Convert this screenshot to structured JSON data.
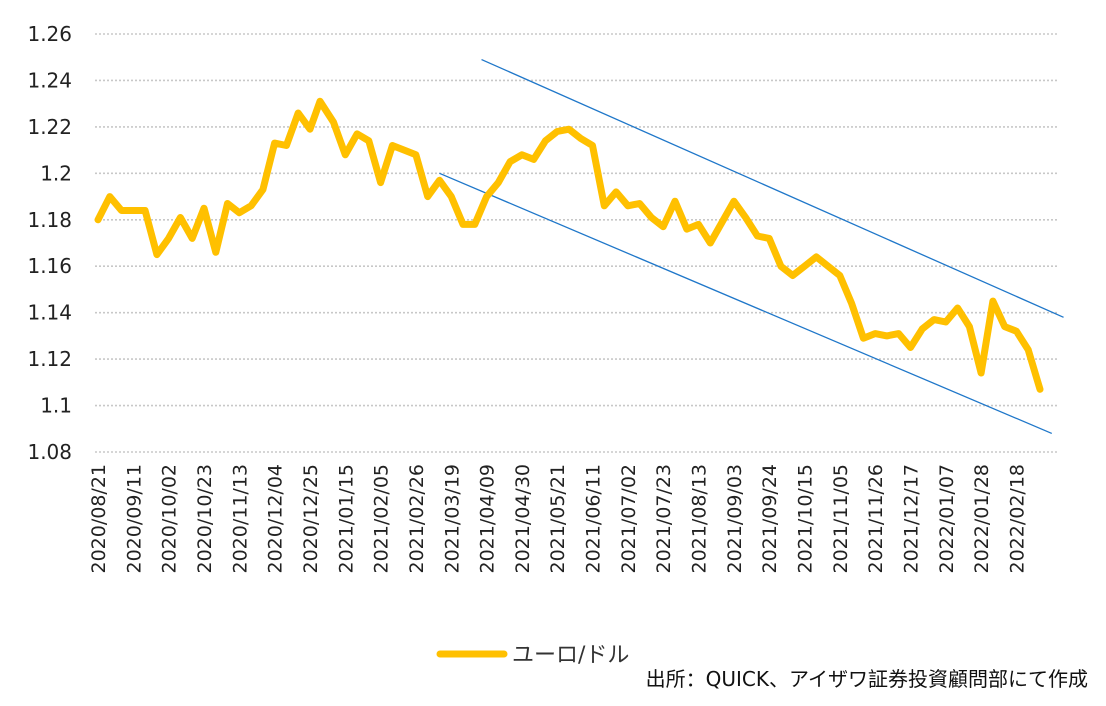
{
  "chart_data": {
    "type": "line",
    "title": "",
    "xlabel": "",
    "ylabel": "",
    "ylim": [
      1.08,
      1.26
    ],
    "y_ticks": [
      "1.08",
      "1.1",
      "1.12",
      "1.14",
      "1.16",
      "1.18",
      "1.2",
      "1.22",
      "1.24",
      "1.26"
    ],
    "x_tick_labels": [
      "2020/08/21",
      "2020/09/11",
      "2020/10/02",
      "2020/10/23",
      "2020/11/13",
      "2020/12/04",
      "2020/12/25",
      "2021/01/15",
      "2021/02/05",
      "2021/02/26",
      "2021/03/19",
      "2021/04/09",
      "2021/04/30",
      "2021/05/21",
      "2021/06/11",
      "2021/07/02",
      "2021/07/23",
      "2021/08/13",
      "2021/09/03",
      "2021/09/24",
      "2021/10/15",
      "2021/11/05",
      "2021/11/26",
      "2021/12/17",
      "2022/01/07",
      "2022/01/28",
      "2022/02/18"
    ],
    "grid": true,
    "legend_position": "bottom",
    "series": [
      {
        "name": "ユーロ/ドル",
        "color": "#FFC000",
        "points": [
          [
            "2020/08/21",
            1.18
          ],
          [
            "2020/08/28",
            1.19
          ],
          [
            "2020/09/04",
            1.184
          ],
          [
            "2020/09/11",
            1.184
          ],
          [
            "2020/09/18",
            1.184
          ],
          [
            "2020/09/25",
            1.165
          ],
          [
            "2020/10/02",
            1.172
          ],
          [
            "2020/10/09",
            1.181
          ],
          [
            "2020/10/16",
            1.172
          ],
          [
            "2020/10/23",
            1.185
          ],
          [
            "2020/10/30",
            1.166
          ],
          [
            "2020/11/06",
            1.187
          ],
          [
            "2020/11/13",
            1.183
          ],
          [
            "2020/11/20",
            1.186
          ],
          [
            "2020/11/27",
            1.193
          ],
          [
            "2020/12/04",
            1.213
          ],
          [
            "2020/12/11",
            1.212
          ],
          [
            "2020/12/18",
            1.226
          ],
          [
            "2020/12/25",
            1.219
          ],
          [
            "2020/12/31",
            1.231
          ],
          [
            "2021/01/08",
            1.222
          ],
          [
            "2021/01/15",
            1.208
          ],
          [
            "2021/01/22",
            1.217
          ],
          [
            "2021/01/29",
            1.214
          ],
          [
            "2021/02/05",
            1.196
          ],
          [
            "2021/02/12",
            1.212
          ],
          [
            "2021/02/19",
            1.21
          ],
          [
            "2021/02/26",
            1.208
          ],
          [
            "2021/03/05",
            1.19
          ],
          [
            "2021/03/12",
            1.197
          ],
          [
            "2021/03/19",
            1.19
          ],
          [
            "2021/03/26",
            1.178
          ],
          [
            "2021/04/02",
            1.178
          ],
          [
            "2021/04/09",
            1.19
          ],
          [
            "2021/04/16",
            1.196
          ],
          [
            "2021/04/23",
            1.205
          ],
          [
            "2021/04/30",
            1.208
          ],
          [
            "2021/05/07",
            1.206
          ],
          [
            "2021/05/14",
            1.214
          ],
          [
            "2021/05/21",
            1.218
          ],
          [
            "2021/05/28",
            1.219
          ],
          [
            "2021/06/04",
            1.215
          ],
          [
            "2021/06/11",
            1.212
          ],
          [
            "2021/06/18",
            1.186
          ],
          [
            "2021/06/25",
            1.192
          ],
          [
            "2021/07/02",
            1.186
          ],
          [
            "2021/07/09",
            1.187
          ],
          [
            "2021/07/16",
            1.181
          ],
          [
            "2021/07/23",
            1.177
          ],
          [
            "2021/07/30",
            1.188
          ],
          [
            "2021/08/06",
            1.176
          ],
          [
            "2021/08/13",
            1.178
          ],
          [
            "2021/08/20",
            1.17
          ],
          [
            "2021/08/27",
            1.179
          ],
          [
            "2021/09/03",
            1.188
          ],
          [
            "2021/09/10",
            1.181
          ],
          [
            "2021/09/17",
            1.173
          ],
          [
            "2021/09/24",
            1.172
          ],
          [
            "2021/10/01",
            1.16
          ],
          [
            "2021/10/08",
            1.156
          ],
          [
            "2021/10/15",
            1.16
          ],
          [
            "2021/10/22",
            1.164
          ],
          [
            "2021/10/29",
            1.16
          ],
          [
            "2021/11/05",
            1.156
          ],
          [
            "2021/11/12",
            1.144
          ],
          [
            "2021/11/19",
            1.129
          ],
          [
            "2021/11/26",
            1.131
          ],
          [
            "2021/12/03",
            1.13
          ],
          [
            "2021/12/10",
            1.131
          ],
          [
            "2021/12/17",
            1.125
          ],
          [
            "2021/12/24",
            1.133
          ],
          [
            "2021/12/31",
            1.137
          ],
          [
            "2022/01/07",
            1.136
          ],
          [
            "2022/01/14",
            1.142
          ],
          [
            "2022/01/21",
            1.134
          ],
          [
            "2022/01/28",
            1.114
          ],
          [
            "2022/02/04",
            1.145
          ],
          [
            "2022/02/11",
            1.134
          ],
          [
            "2022/02/18",
            1.132
          ],
          [
            "2022/02/25",
            1.124
          ],
          [
            "2022/03/04",
            1.107
          ]
        ]
      }
    ],
    "trendlines": [
      {
        "points": [
          [
            "2021/04/06",
            1.249
          ],
          [
            "2022/03/18",
            1.138
          ]
        ],
        "color": "#1F77C9"
      },
      {
        "points": [
          [
            "2021/03/12",
            1.2
          ],
          [
            "2022/03/11",
            1.088
          ]
        ],
        "color": "#1F77C9"
      }
    ],
    "source_note": "出所：QUICK、アイザワ証券投資顧問部にて作成"
  }
}
